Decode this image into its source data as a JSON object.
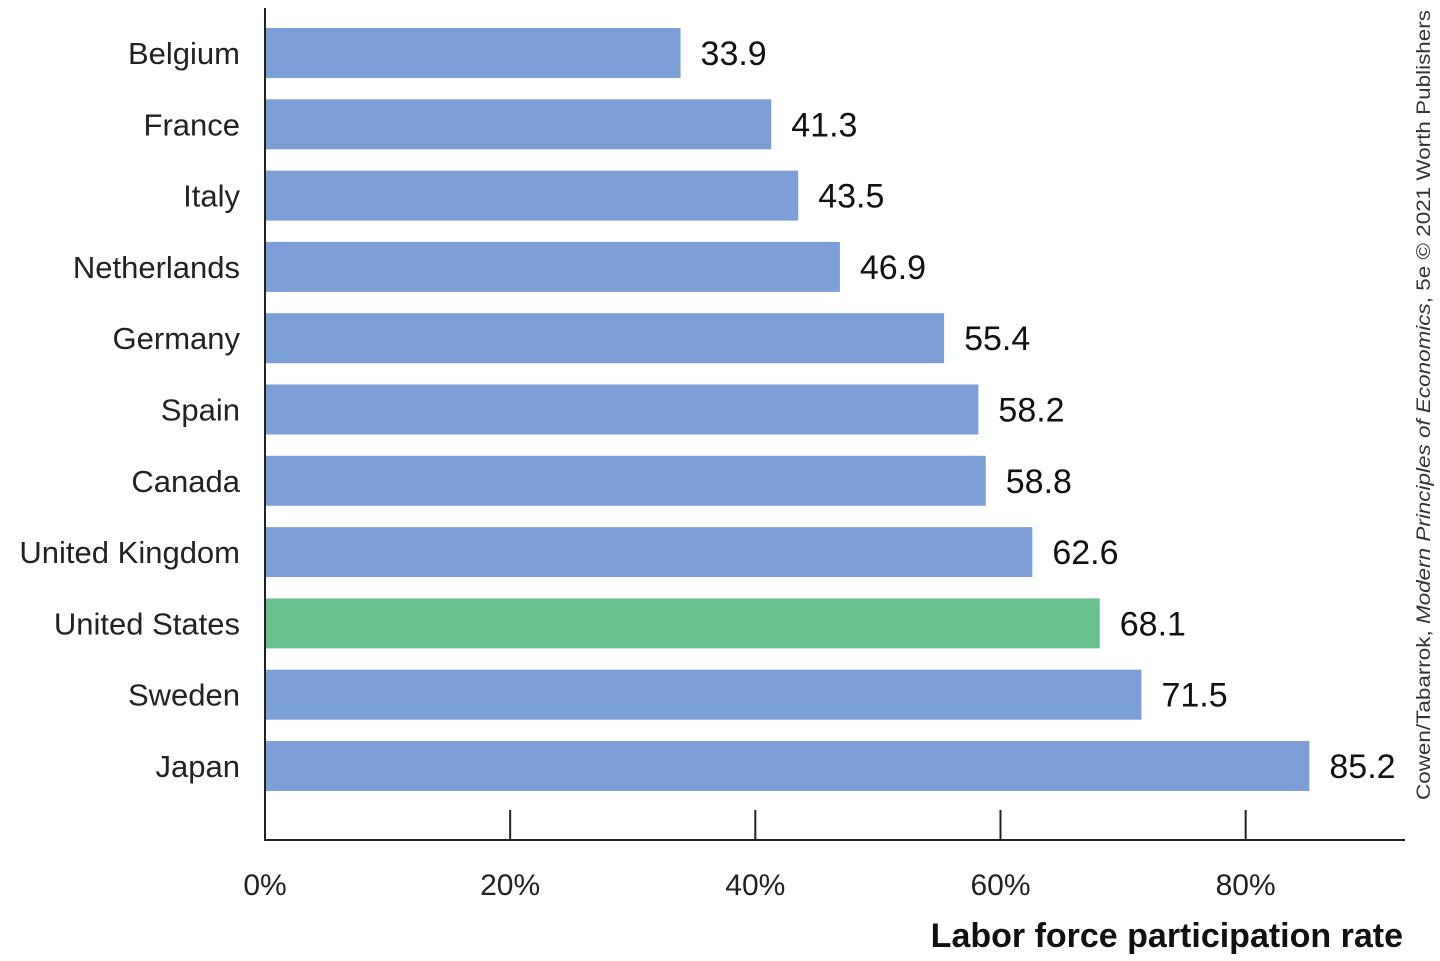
{
  "chart_data": {
    "type": "bar",
    "orientation": "horizontal",
    "categories": [
      "Belgium",
      "France",
      "Italy",
      "Netherlands",
      "Germany",
      "Spain",
      "Canada",
      "United Kingdom",
      "United States",
      "Sweden",
      "Japan"
    ],
    "values": [
      33.9,
      41.3,
      43.5,
      46.9,
      55.4,
      58.2,
      58.8,
      62.6,
      68.1,
      71.5,
      85.2
    ],
    "value_labels": [
      "33.9",
      "41.3",
      "43.5",
      "46.9",
      "55.4",
      "58.2",
      "58.8",
      "62.6",
      "68.1",
      "71.5",
      "85.2"
    ],
    "highlight_category": "United States",
    "xlabel": "Labor force participation rate",
    "x_ticks": [
      0,
      20,
      40,
      60,
      80
    ],
    "x_tick_labels": [
      "0%",
      "20%",
      "40%",
      "60%",
      "80%"
    ],
    "xlim": [
      0,
      93
    ],
    "grid": false,
    "colors": {
      "bar": "#7d9fd8",
      "highlight": "#69c28e",
      "axis": "#222222"
    }
  },
  "credit": {
    "prefix": "Cowen/Tabarrok, ",
    "title": "Modern Principles of Economics",
    "suffix": ", 5e © 2021 Worth Publishers"
  }
}
